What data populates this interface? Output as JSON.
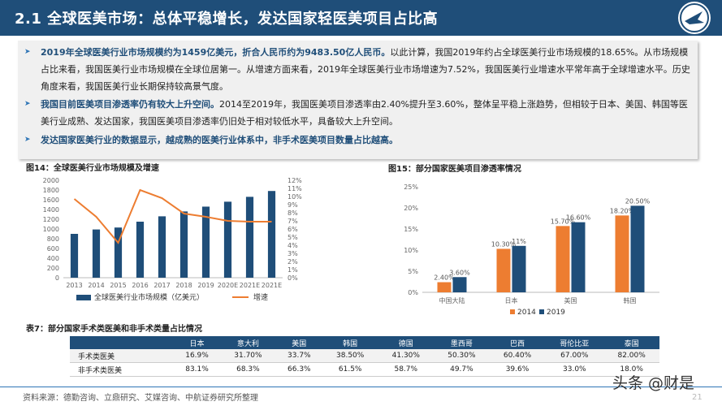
{
  "header": {
    "title": "2.1 全球医美市场：总体平稳增长，发达国家轻医美项目占比高"
  },
  "summary": {
    "bullets": [
      {
        "strong": "2019年全球医美行业市场规模约为1459亿美元，折合人民币约为9483.50亿人民币。",
        "text": "以此计算，我国2019年约占全球医美行业市场规模的18.65%。从市场规模占比来看，我国医美行业市场规模在全球位居第一。从增速方面来看，2019年全球医美行业市场增速为7.52%，我国医美行业增速水平常年高于全球增速水平。历史角度来看，我国医美行业长期保持较高景气度。"
      },
      {
        "strong": "我国目前医美项目渗透率仍有较大上升空间。",
        "text": "2014至2019年，我国医美项目渗透率由2.40%提升至3.60%，整体呈平稳上涨趋势，但相较于日本、美国、韩国等医美行业成熟、发达国家，我国医美项目渗透率仍旧处于相对较低水平，具备较大上升空间。"
      },
      {
        "strong": "发达国家医美行业的数据显示，越成熟的医美行业体系中，非手术医美项目数量占比越高。",
        "text": ""
      }
    ]
  },
  "fig14": {
    "title": "图14：全球医美行业市场规模及增速",
    "chart_data": {
      "type": "bar",
      "categories": [
        "2013",
        "2014",
        "2015",
        "2016",
        "2017",
        "2018",
        "2019",
        "2020E",
        "2021E",
        "2021E"
      ],
      "series": [
        {
          "name": "全球医美行业市场规模（亿美元）",
          "values": [
            900,
            990,
            1030,
            1150,
            1260,
            1360,
            1459,
            1560,
            1660,
            1780
          ],
          "axis": "left",
          "color": "#1f4e79"
        },
        {
          "name": "增速",
          "values": [
            9.7,
            7.5,
            4.3,
            10.8,
            9.8,
            7.9,
            7.5,
            7.0,
            6.9,
            6.9
          ],
          "axis": "right",
          "color": "#ed7d31"
        }
      ],
      "ylim_left": [
        0,
        2000
      ],
      "yticks_left": [
        "0",
        "200",
        "400",
        "600",
        "800",
        "1000",
        "1200",
        "1400",
        "1600",
        "1800",
        "2000"
      ],
      "ylim_right": [
        0,
        12
      ],
      "yticks_right": [
        "0%",
        "1%",
        "2%",
        "3%",
        "4%",
        "5%",
        "6%",
        "7%",
        "8%",
        "9%",
        "10%",
        "11%",
        "12%"
      ],
      "legend_position": "bottom"
    }
  },
  "fig15": {
    "title": "图15：部分国家医美项目渗透率情况",
    "chart_data": {
      "type": "bar",
      "categories": [
        "中国大陆",
        "日本",
        "美国",
        "韩国"
      ],
      "series": [
        {
          "name": "2014",
          "values": [
            2.4,
            10.3,
            15.7,
            18.2
          ],
          "labels": [
            "2.40%",
            "10.30%",
            "15.70%",
            "18.20%"
          ],
          "color": "#ed7d31"
        },
        {
          "name": "2019",
          "values": [
            3.6,
            11,
            16.6,
            20.5
          ],
          "labels": [
            "3.60%",
            "11%",
            "16.60%",
            "20.50%"
          ],
          "color": "#1f4e79"
        }
      ],
      "ylim": [
        0,
        25
      ],
      "yticks": [
        "0%",
        "5%",
        "10%",
        "15%",
        "20%",
        "25%"
      ],
      "legend_position": "bottom"
    }
  },
  "table7": {
    "title": "表7：部分国家手术类医美和非手术类量占比情况",
    "columns": [
      "",
      "日本",
      "意大利",
      "美国",
      "韩国",
      "德国",
      "墨西哥",
      "巴西",
      "哥伦比亚",
      "泰国"
    ],
    "rows": [
      [
        "手术类医美",
        "16.9%",
        "31.70%",
        "33.7%",
        "38.50%",
        "41.30%",
        "50.30%",
        "60.40%",
        "67.00%",
        "82.00%"
      ],
      [
        "非手术类医美",
        "83.1%",
        "68.3%",
        "66.3%",
        "61.5%",
        "58.7%",
        "49.7%",
        "39.6%",
        "33.0%",
        "18.0%"
      ]
    ]
  },
  "footer": {
    "source": "资料来源：德勤咨询、立鼎研究、艾媒咨询、中航证券研究所整理",
    "watermark": "头条 @财是",
    "page": "21"
  }
}
